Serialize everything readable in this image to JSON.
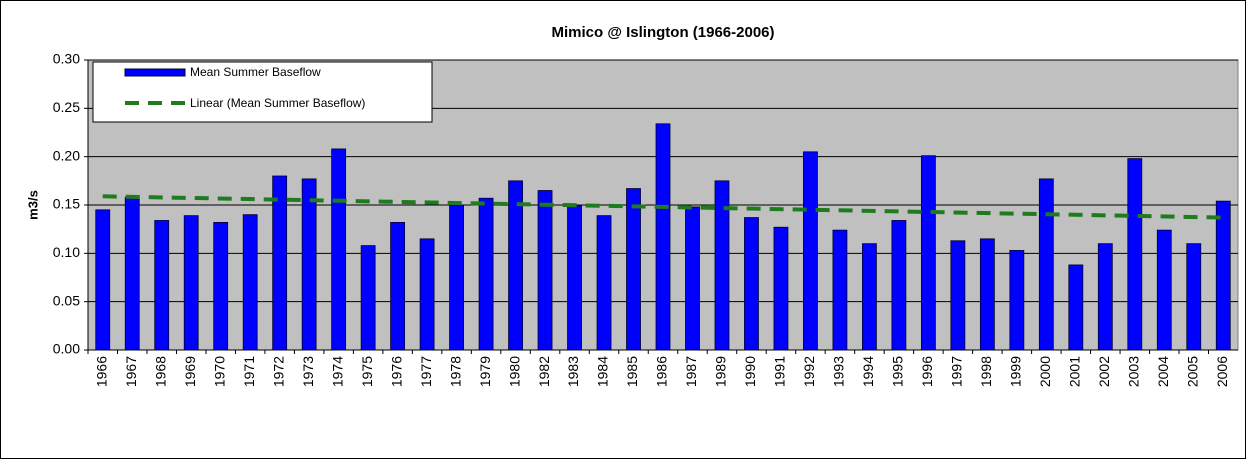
{
  "chart_data": {
    "type": "bar",
    "title": "Mimico @ Islington (1966-2006)",
    "y_label": "m3/s",
    "categories": [
      "1966",
      "1967",
      "1968",
      "1969",
      "1970",
      "1971",
      "1972",
      "1973",
      "1974",
      "1975",
      "1976",
      "1977",
      "1978",
      "1979",
      "1980",
      "1982",
      "1983",
      "1984",
      "1985",
      "1986",
      "1987",
      "1989",
      "1990",
      "1991",
      "1992",
      "1993",
      "1994",
      "1995",
      "1996",
      "1997",
      "1998",
      "1999",
      "2000",
      "2001",
      "2002",
      "2003",
      "2004",
      "2005",
      "2006"
    ],
    "series": [
      {
        "name": "Mean Summer Baseflow",
        "color": "#0000ff",
        "values": [
          0.145,
          0.158,
          0.134,
          0.139,
          0.132,
          0.14,
          0.18,
          0.177,
          0.208,
          0.108,
          0.132,
          0.115,
          0.15,
          0.157,
          0.175,
          0.165,
          0.149,
          0.139,
          0.167,
          0.234,
          0.148,
          0.175,
          0.137,
          0.127,
          0.205,
          0.124,
          0.11,
          0.134,
          0.201,
          0.113,
          0.115,
          0.103,
          0.177,
          0.088,
          0.11,
          0.198,
          0.124,
          0.11,
          0.154
        ]
      }
    ],
    "trend": {
      "name": "Linear (Mean Summer Baseflow)",
      "color": "#1e7b1e",
      "values": [
        0.159,
        0.137
      ]
    },
    "ylim": [
      0,
      0.3
    ],
    "yticks": [
      {
        "value": 0,
        "label": "0.00"
      },
      {
        "value": 0.05,
        "label": "0.05"
      },
      {
        "value": 0.1,
        "label": "0.10"
      },
      {
        "value": 0.15,
        "label": "0.15"
      },
      {
        "value": 0.2,
        "label": "0.20"
      },
      {
        "value": 0.25,
        "label": "0.25"
      },
      {
        "value": 0.3,
        "label": "0.30"
      }
    ],
    "grid": true,
    "legend": "top-left"
  }
}
